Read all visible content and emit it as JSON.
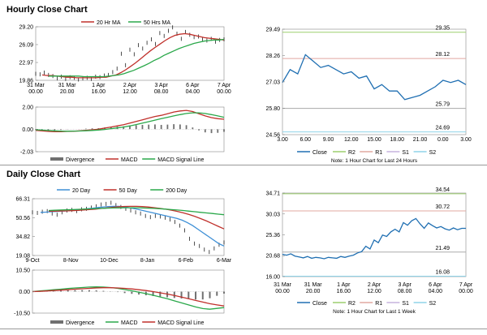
{
  "sections": {
    "hourly_title": "Hourly Close Chart",
    "daily_title": "Daily Close Chart"
  },
  "colors": {
    "close": "#1f6fb2",
    "ma_red": "#c0302b",
    "ma_green": "#2aa84a",
    "ma_blue": "#3d8fd6",
    "divergence": "#707070",
    "r2": "#9ccf6e",
    "r1": "#e0a8a0",
    "s1": "#c6b3de",
    "s2": "#8fd3e8",
    "support_gray": "#aaaaaa"
  },
  "chart_data": [
    {
      "id": "hourly_price",
      "type": "line",
      "legend": [
        "20 Hr MA",
        "50 Hrs MA"
      ],
      "y_ticks": [
        "29.20",
        "26.09",
        "22.97",
        "19.86"
      ],
      "ylim": [
        19.86,
        29.2
      ],
      "x_ticks": [
        "31 Mar\n00.00",
        "31 Mar\n20.00",
        "1 Apr\n16.00",
        "2 Apr\n12.00",
        "3 Apr\n08.00",
        "6 Apr\n04.00",
        "7 Apr\n00.00"
      ],
      "series": [
        {
          "name": "Close",
          "values": [
            21.0,
            20.9,
            21.2,
            20.8,
            20.6,
            20.2,
            20.5,
            20.1,
            20.4,
            20.3,
            20.0,
            20.2,
            20.3,
            20.1,
            20.5,
            20.4,
            20.7,
            20.8,
            21.3,
            21.9,
            24.5,
            22.5,
            25.2,
            24.4,
            26.0,
            25.4,
            26.4,
            27.0,
            26.2,
            28.1,
            27.6,
            28.5,
            29.1,
            28.0,
            27.1,
            28.3,
            27.8,
            27.4,
            27.5,
            27.0,
            26.8,
            27.1,
            26.6,
            26.9,
            27.0
          ]
        },
        {
          "name": "20 Hr MA",
          "values": [
            20.8,
            20.7,
            20.7,
            20.6,
            20.5,
            20.4,
            20.4,
            20.3,
            20.3,
            20.3,
            20.3,
            20.3,
            20.4,
            20.4,
            20.6,
            20.8,
            21.2,
            21.7,
            22.3,
            22.9,
            23.6,
            24.3,
            25.0,
            25.6,
            26.2,
            26.8,
            27.3,
            27.7,
            27.9,
            28.0,
            27.9,
            27.7,
            27.5,
            27.3,
            27.2,
            27.1,
            27.0,
            26.9
          ]
        },
        {
          "name": "50 Hrs MA",
          "values": [
            20.6,
            20.6,
            20.6,
            20.6,
            20.6,
            20.6,
            20.6,
            20.5,
            20.5,
            20.5,
            20.5,
            20.5,
            20.6,
            20.7,
            20.8,
            21.0,
            21.3,
            21.6,
            22.0,
            22.4,
            22.8,
            23.3,
            23.7,
            24.2,
            24.6,
            25.0,
            25.4,
            25.7,
            26.0,
            26.3,
            26.5,
            26.7,
            26.8,
            26.9,
            26.9,
            27.0
          ]
        }
      ]
    },
    {
      "id": "hourly_macd",
      "type": "line",
      "legend": [
        "Divergence",
        "MACD",
        "MACD Signal Line"
      ],
      "y_ticks": [
        "2.00",
        "0.00",
        "-2.03"
      ],
      "ylim": [
        -2.03,
        2.0
      ],
      "series": [
        {
          "name": "MACD",
          "values": [
            -0.1,
            -0.15,
            -0.2,
            -0.22,
            -0.22,
            -0.2,
            -0.18,
            -0.15,
            -0.1,
            -0.05,
            0.0,
            0.1,
            0.2,
            0.3,
            0.4,
            0.55,
            0.7,
            0.85,
            1.0,
            1.15,
            1.25,
            1.4,
            1.55,
            1.65,
            1.7,
            1.6,
            1.4,
            1.2,
            1.05,
            0.95,
            0.9
          ]
        },
        {
          "name": "MACD Signal Line",
          "values": [
            -0.05,
            -0.08,
            -0.12,
            -0.15,
            -0.17,
            -0.18,
            -0.17,
            -0.16,
            -0.14,
            -0.11,
            -0.07,
            -0.02,
            0.05,
            0.12,
            0.2,
            0.3,
            0.42,
            0.55,
            0.68,
            0.82,
            0.95,
            1.08,
            1.2,
            1.32,
            1.42,
            1.48,
            1.48,
            1.42,
            1.32,
            1.2,
            1.08
          ]
        }
      ]
    },
    {
      "id": "hourly_pivot",
      "type": "line",
      "legend": [
        "Close",
        "R2",
        "R1",
        "S1",
        "S2"
      ],
      "note": "Note: 1 Hour Chart for Last 24 Hours",
      "y_ticks": [
        "29.49",
        "28.26",
        "27.03",
        "25.80",
        "24.56"
      ],
      "ylim": [
        24.56,
        29.49
      ],
      "x_ticks": [
        "3.00",
        "6.00",
        "9.00",
        "12.00",
        "15.00",
        "18.00",
        "21.00",
        "0.00",
        "3.00"
      ],
      "levels": [
        {
          "name": "R2",
          "value": 29.35,
          "label": "29.35"
        },
        {
          "name": "R1",
          "value": 28.12,
          "label": "28.12"
        },
        {
          "name": "S1",
          "value": 25.79,
          "label": "25.79"
        },
        {
          "name": "S2",
          "value": 24.69,
          "label": "24.69"
        }
      ],
      "series": [
        {
          "name": "Close",
          "values": [
            27.0,
            27.6,
            27.4,
            28.3,
            28.0,
            27.7,
            27.8,
            27.6,
            27.4,
            27.5,
            27.2,
            27.3,
            26.7,
            26.9,
            26.6,
            26.6,
            26.2,
            26.3,
            26.4,
            26.6,
            26.8,
            27.1,
            27.0,
            27.1,
            26.9
          ]
        }
      ]
    },
    {
      "id": "daily_price",
      "type": "line",
      "legend": [
        "20 Day",
        "50 Day",
        "200 Day"
      ],
      "y_ticks": [
        "66.31",
        "50.56",
        "34.82",
        "19.08"
      ],
      "ylim": [
        19.08,
        66.31
      ],
      "x_ticks": [
        "9-Oct",
        "8-Nov",
        "10-Dec",
        "8-Jan",
        "6-Feb",
        "6-Mar"
      ],
      "series": [
        {
          "name": "Close",
          "values": [
            55.0,
            54.5,
            55.5,
            56.0,
            54.0,
            53.0,
            55.0,
            56.5,
            57.0,
            56.0,
            57.5,
            58.0,
            59.0,
            60.0,
            61.5,
            62.0,
            63.0,
            61.0,
            59.5,
            58.0,
            56.5,
            55.0,
            54.0,
            52.0,
            51.0,
            52.0,
            51.5,
            50.5,
            49.0,
            47.0,
            44.0,
            40.0,
            33.0,
            29.0,
            27.0,
            24.0,
            22.0,
            25.0,
            28.0,
            30.0
          ]
        },
        {
          "name": "20 Day",
          "values": [
            55.0,
            55.2,
            55.5,
            55.7,
            55.9,
            56.2,
            56.6,
            57.0,
            57.5,
            58.0,
            58.5,
            59.0,
            59.5,
            59.8,
            60.0,
            60.0,
            59.5,
            58.8,
            58.0,
            57.0,
            56.0,
            55.0,
            54.0,
            53.0,
            52.0,
            51.0,
            50.0,
            48.5,
            46.5,
            44.0,
            41.0,
            38.0,
            35.0,
            32.0,
            29.0,
            27.0
          ]
        },
        {
          "name": "50 Day",
          "values": [
            56.0,
            56.0,
            56.1,
            56.2,
            56.4,
            56.6,
            56.9,
            57.3,
            57.7,
            58.2,
            58.7,
            59.2,
            59.6,
            59.9,
            60.0,
            60.0,
            59.8,
            59.4,
            58.9,
            58.3,
            57.6,
            56.8,
            55.8,
            54.6,
            53.2,
            51.6,
            49.8,
            47.8,
            45.6,
            43.4,
            41.2
          ]
        },
        {
          "name": "200 Day",
          "values": [
            56.5,
            56.7,
            56.9,
            57.1,
            57.3,
            57.5,
            57.7,
            57.9,
            58.1,
            58.3,
            58.5,
            58.6,
            58.7,
            58.8,
            58.8,
            58.8,
            58.7,
            58.5,
            58.3,
            58.0,
            57.7,
            57.3,
            56.9,
            56.5,
            56.0,
            55.5,
            55.0,
            54.5,
            54.0,
            53.5,
            53.0
          ]
        }
      ]
    },
    {
      "id": "daily_macd",
      "type": "line",
      "legend": [
        "Divergence",
        "MACD",
        "MACD Signal Line"
      ],
      "y_ticks": [
        "10.50",
        "0.00",
        "-10.50"
      ],
      "ylim": [
        -10.5,
        10.5
      ],
      "series": [
        {
          "name": "MACD",
          "values": [
            0.0,
            0.3,
            0.6,
            0.9,
            1.2,
            1.5,
            1.8,
            2.0,
            2.2,
            2.3,
            2.2,
            2.0,
            1.6,
            1.0,
            0.4,
            -0.3,
            -1.0,
            -1.8,
            -2.6,
            -3.5,
            -4.5,
            -5.5,
            -6.5,
            -7.5,
            -8.3,
            -8.6,
            -8.2,
            -7.8
          ]
        },
        {
          "name": "MACD Signal Line",
          "values": [
            0.0,
            0.1,
            0.3,
            0.5,
            0.7,
            0.9,
            1.2,
            1.4,
            1.6,
            1.8,
            1.9,
            1.9,
            1.8,
            1.6,
            1.3,
            0.9,
            0.5,
            0.0,
            -0.6,
            -1.2,
            -1.9,
            -2.7,
            -3.5,
            -4.3,
            -5.1,
            -5.9,
            -6.5,
            -7.0
          ]
        }
      ]
    },
    {
      "id": "daily_pivot",
      "type": "line",
      "legend": [
        "Close",
        "R2",
        "R1",
        "S1",
        "S2"
      ],
      "note": "Note: 1 Hour Chart for Last 1 Week",
      "y_ticks": [
        "34.71",
        "30.03",
        "25.36",
        "20.68",
        "16.00"
      ],
      "ylim": [
        16.0,
        34.71
      ],
      "x_ticks": [
        "31 Mar\n00.00",
        "31 Mar\n20.00",
        "1 Apr\n16.00",
        "2 Apr\n12.00",
        "3 Apr\n08.00",
        "6 Apr\n04.00",
        "7 Apr\n00.00"
      ],
      "levels": [
        {
          "name": "R2",
          "value": 34.54,
          "label": "34.54"
        },
        {
          "name": "R1",
          "value": 30.72,
          "label": "30.72"
        },
        {
          "name": "S1",
          "value": 21.49,
          "label": "21.49"
        },
        {
          "name": "S2",
          "value": 16.08,
          "label": "16.08"
        }
      ],
      "series": [
        {
          "name": "Close",
          "values": [
            21.0,
            20.8,
            21.1,
            20.6,
            20.4,
            20.2,
            20.5,
            20.1,
            20.3,
            20.2,
            20.0,
            20.3,
            20.2,
            20.1,
            20.5,
            20.3,
            20.6,
            20.8,
            21.3,
            21.6,
            22.8,
            22.2,
            24.2,
            23.6,
            25.3,
            25.0,
            26.0,
            26.6,
            26.0,
            28.1,
            27.5,
            28.5,
            29.0,
            27.8,
            26.8,
            28.0,
            27.4,
            26.9,
            27.2,
            26.7,
            26.4,
            26.9,
            26.5,
            26.8,
            26.8
          ]
        }
      ]
    }
  ]
}
